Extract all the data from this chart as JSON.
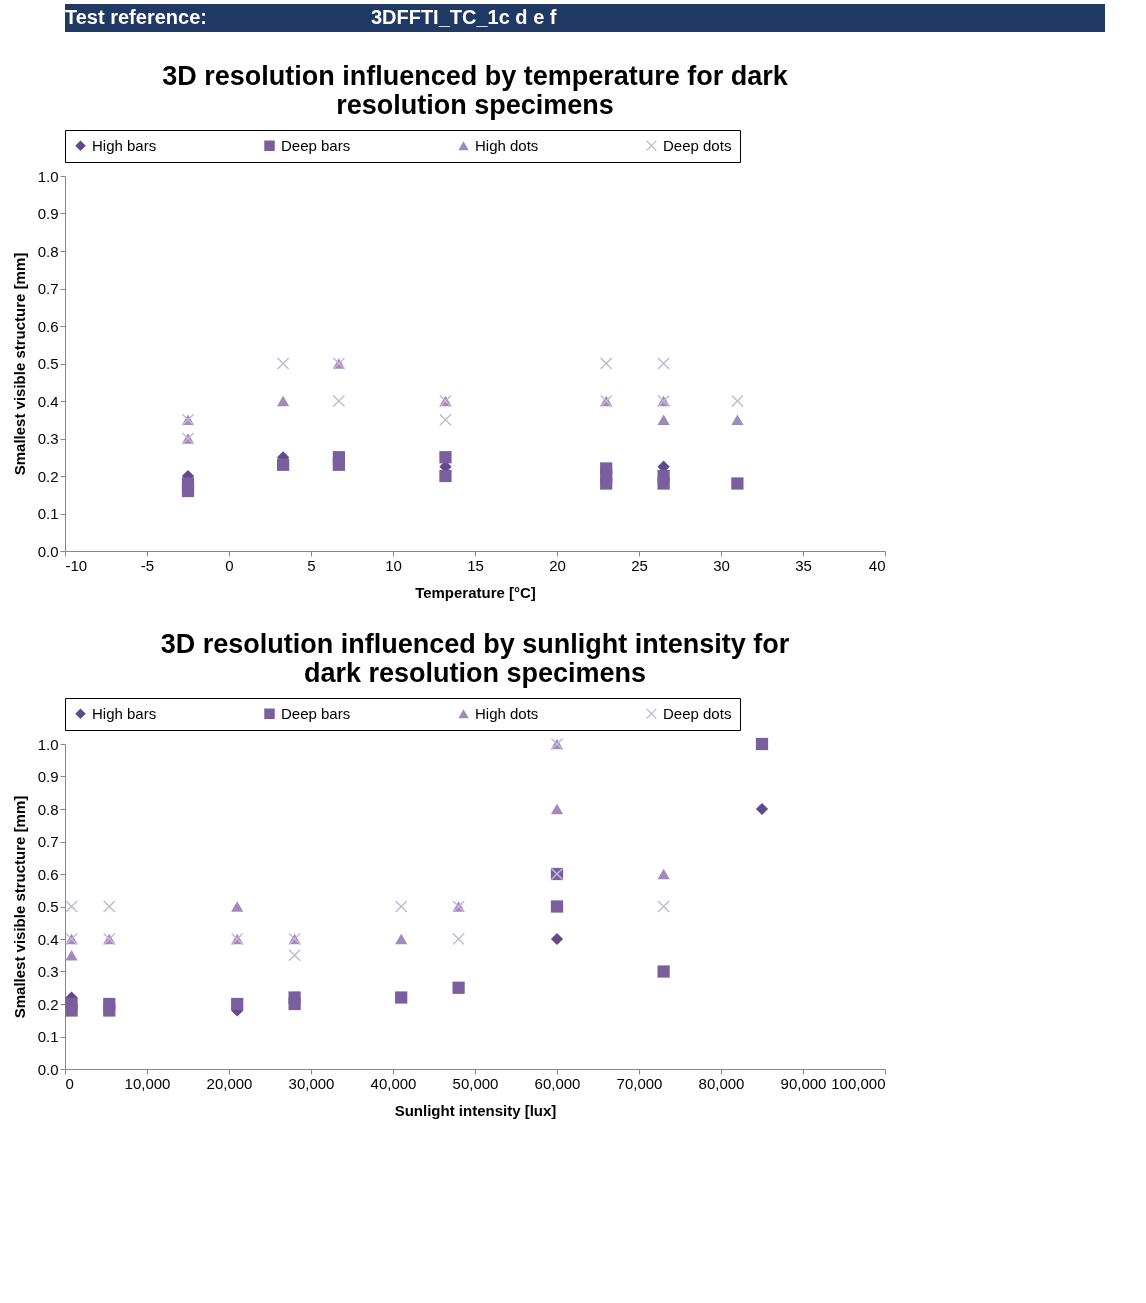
{
  "chart_data": [
    {
      "type": "scatter",
      "title": "3D resolution influenced by temperature for dark resolution specimens",
      "xlabel": "Temperature [°C]",
      "ylabel": "Smallest visible structure [mm]",
      "annotations": [
        "Test reference:",
        "3DFFTI_TC_1c d e f"
      ],
      "legend": "top",
      "grid": false,
      "xlim": [
        -10,
        40
      ],
      "xticks": [
        -10,
        -5,
        0,
        5,
        10,
        15,
        20,
        25,
        30,
        35,
        40
      ],
      "ylim": [
        0,
        1
      ],
      "yticks": [
        {
          "value": 0,
          "label": "0.0"
        },
        0.1,
        0.2,
        0.3,
        0.4,
        0.5,
        0.6,
        0.7,
        0.8,
        0.9,
        {
          "value": 1,
          "label": "1.0"
        }
      ],
      "series": [
        {
          "name": "High bars",
          "color": "#5f4b8b",
          "marker": "diamond",
          "x": [
            -2.5,
            3.3,
            13.2,
            26.5
          ],
          "values": [
            0.2,
            0.25,
            0.225,
            0.225
          ]
        },
        {
          "name": "Deep bars",
          "color": "#7a5f9e",
          "marker": "square",
          "x": [
            -2.5,
            -2.5,
            3.3,
            6.7,
            6.7,
            13.2,
            13.2,
            23,
            23,
            23,
            26.5,
            26.5,
            31
          ],
          "values": [
            0.18,
            0.16,
            0.23,
            0.25,
            0.23,
            0.25,
            0.2,
            0.22,
            0.2,
            0.18,
            0.2,
            0.18,
            0.18
          ]
        },
        {
          "name": "High dots",
          "color": "#9e8bbd",
          "marker": "triangle",
          "x": [
            -2.5,
            -2.5,
            3.3,
            6.7,
            13.2,
            23,
            26.5,
            26.5,
            31
          ],
          "values": [
            0.35,
            0.3,
            0.4,
            0.5,
            0.4,
            0.4,
            0.4,
            0.35,
            0.35
          ]
        },
        {
          "name": "Deep dots",
          "color": "#c4b8d8",
          "marker": "cross",
          "x": [
            -2.5,
            -2.5,
            3.3,
            6.7,
            6.7,
            13.2,
            13.2,
            23,
            23,
            26.5,
            26.5,
            31
          ],
          "values": [
            0.35,
            0.3,
            0.5,
            0.5,
            0.4,
            0.4,
            0.35,
            0.5,
            0.4,
            0.5,
            0.4,
            0.4
          ]
        }
      ]
    },
    {
      "type": "scatter",
      "title": "3D resolution influenced by sunlight intensity for dark resolution specimens",
      "xlabel": "Sunlight intensity [lux]",
      "ylabel": "Smallest visible structure [mm]",
      "legend": "top",
      "grid": false,
      "xlim": [
        0,
        100000
      ],
      "xticks": [
        0,
        {
          "value": 10000,
          "label": "10,000"
        },
        {
          "value": 20000,
          "label": "20,000"
        },
        {
          "value": 30000,
          "label": "30,000"
        },
        {
          "value": 40000,
          "label": "40,000"
        },
        {
          "value": 50000,
          "label": "50,000"
        },
        {
          "value": 60000,
          "label": "60,000"
        },
        {
          "value": 70000,
          "label": "70,000"
        },
        {
          "value": 80000,
          "label": "80,000"
        },
        {
          "value": 90000,
          "label": "90,000"
        },
        {
          "value": 100000,
          "label": "100,000"
        }
      ],
      "ylim": [
        0,
        1
      ],
      "yticks": [
        {
          "value": 0,
          "label": "0.0"
        },
        0.1,
        0.2,
        0.3,
        0.4,
        0.5,
        0.6,
        0.7,
        0.8,
        0.9,
        {
          "value": 1,
          "label": "1.0"
        }
      ],
      "series": [
        {
          "name": "High bars",
          "color": "#5f4b8b",
          "marker": "diamond",
          "x": [
            800,
            21000,
            60000,
            85000
          ],
          "values": [
            0.22,
            0.18,
            0.4,
            0.8
          ]
        },
        {
          "name": "Deep bars",
          "color": "#7a5f9e",
          "marker": "square",
          "x": [
            800,
            800,
            5400,
            5400,
            21000,
            28000,
            28000,
            41000,
            48000,
            60000,
            60000,
            73000,
            85000
          ],
          "values": [
            0.2,
            0.18,
            0.2,
            0.18,
            0.2,
            0.22,
            0.2,
            0.22,
            0.25,
            0.6,
            0.5,
            0.3,
            1.0
          ]
        },
        {
          "name": "High dots",
          "color": "#9e8bbd",
          "marker": "triangle",
          "x": [
            800,
            800,
            5400,
            21000,
            21000,
            28000,
            41000,
            48000,
            60000,
            60000,
            73000
          ],
          "values": [
            0.4,
            0.35,
            0.4,
            0.5,
            0.4,
            0.4,
            0.4,
            0.5,
            1.0,
            0.8,
            0.6
          ]
        },
        {
          "name": "Deep dots",
          "color": "#c4b8d8",
          "marker": "cross",
          "x": [
            800,
            800,
            5400,
            5400,
            21000,
            28000,
            28000,
            41000,
            48000,
            48000,
            60000,
            60000,
            73000
          ],
          "values": [
            0.5,
            0.4,
            0.5,
            0.4,
            0.4,
            0.4,
            0.35,
            0.5,
            0.5,
            0.4,
            1.0,
            0.6,
            0.5
          ]
        }
      ]
    }
  ]
}
